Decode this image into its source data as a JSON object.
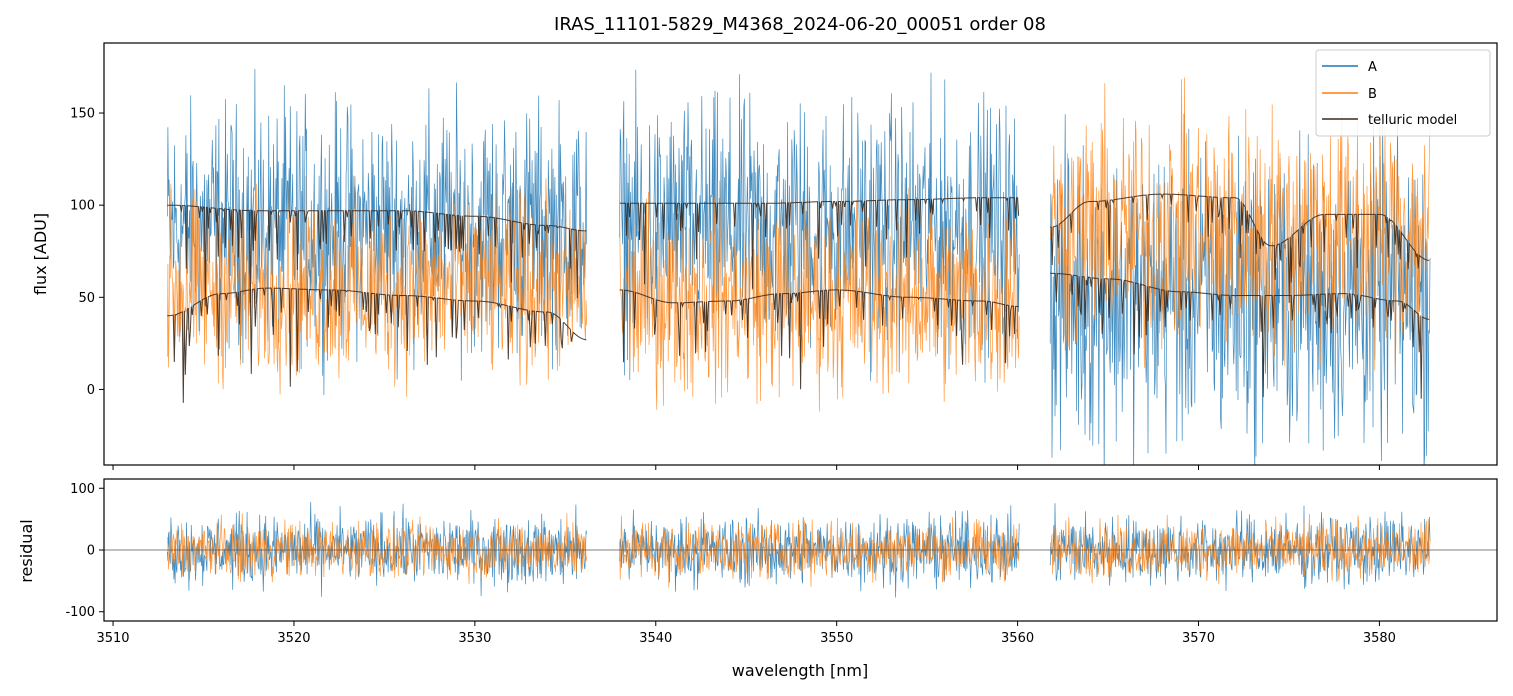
{
  "chart_data": [
    {
      "type": "line",
      "title": "IRAS_11101-5829_M4368_2024-06-20_00051  order 08",
      "xlabel": "",
      "ylabel": "flux [ADU]",
      "xlim": [
        3509.5,
        3586.5
      ],
      "ylim": [
        -41,
        188
      ],
      "yticks": [
        0,
        50,
        100,
        150
      ],
      "xticks": [
        3510,
        3520,
        3530,
        3540,
        3550,
        3560,
        3570,
        3580
      ],
      "legend": {
        "loc": "upper right",
        "entries": [
          "A",
          "B",
          "telluric model"
        ]
      },
      "segments": [
        {
          "x": [
            3513.0,
            3536.2
          ]
        },
        {
          "x": [
            3538.0,
            3560.1
          ]
        },
        {
          "x": [
            3561.8,
            3582.8
          ]
        }
      ],
      "series": [
        {
          "name": "A",
          "color": "#1f77b4",
          "mean": [
            88,
            88,
            50
          ],
          "spread": [
            60,
            62,
            75
          ]
        },
        {
          "name": "B",
          "color": "#ff7f0e",
          "mean": [
            55,
            50,
            85
          ],
          "spread": [
            45,
            48,
            60
          ]
        },
        {
          "name": "telluric model",
          "color": "#3a2a1e",
          "lines": [
            {
              "x": [
                3513.0,
                3518,
                3522,
                3526,
                3530,
                3534,
                3536.2
              ],
              "y": [
                100,
                97,
                97,
                97,
                94,
                89,
                86
              ]
            },
            {
              "x": [
                3513.0,
                3516,
                3518.5,
                3522,
                3526,
                3530,
                3534,
                3536.2
              ],
              "y": [
                40,
                52,
                55,
                54,
                51,
                48,
                42,
                27
              ]
            },
            {
              "x": [
                3538.0,
                3542,
                3546,
                3550,
                3554,
                3558,
                3560.1
              ],
              "y": [
                101,
                101,
                101,
                102,
                103,
                104,
                104
              ]
            },
            {
              "x": [
                3538.0,
                3541,
                3544,
                3547,
                3550,
                3554,
                3558,
                3560.1
              ],
              "y": [
                54,
                47,
                48,
                52,
                54,
                50,
                48,
                45
              ]
            },
            {
              "x": [
                3561.8,
                3564,
                3568,
                3572,
                3574,
                3577,
                3580,
                3582.8
              ],
              "y": [
                88,
                102,
                106,
                104,
                78,
                95,
                95,
                70
              ]
            },
            {
              "x": [
                3561.8,
                3565,
                3569,
                3572,
                3575,
                3578,
                3581,
                3582.8
              ],
              "y": [
                63,
                60,
                53,
                51,
                51,
                52,
                48,
                38
              ]
            }
          ]
        }
      ]
    },
    {
      "type": "line",
      "title": "",
      "xlabel": "wavelength [nm]",
      "ylabel": "residual",
      "xlim": [
        3509.5,
        3586.5
      ],
      "ylim": [
        -115,
        115
      ],
      "yticks": [
        -100,
        0,
        100
      ],
      "xticks": [
        3510,
        3520,
        3530,
        3540,
        3550,
        3560,
        3570,
        3580
      ],
      "hline": 0,
      "series": [
        {
          "name": "A",
          "color": "#1f77b4",
          "spread": 55
        },
        {
          "name": "B",
          "color": "#ff7f0e",
          "spread": 45
        }
      ]
    }
  ]
}
